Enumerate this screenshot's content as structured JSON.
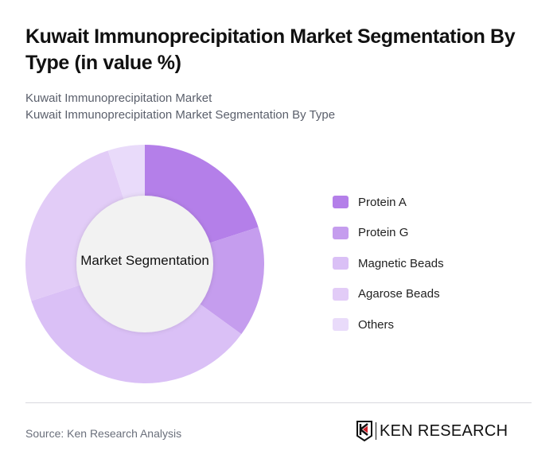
{
  "header": {
    "title": "Kuwait Immunoprecipitation Market Segmentation By Type (in value %)",
    "subtitle_line1": "Kuwait Immunoprecipitation Market",
    "subtitle_line2": "Kuwait Immunoprecipitation Market Segmentation By Type"
  },
  "chart": {
    "center_label": "Market Segmentation"
  },
  "legend": {
    "items": [
      {
        "label": "Protein A",
        "color": "#B47FE9"
      },
      {
        "label": "Protein G",
        "color": "#C59DEE"
      },
      {
        "label": "Magnetic Beads",
        "color": "#DAC0F6"
      },
      {
        "label": "Agarose Beads",
        "color": "#E2CCF7"
      },
      {
        "label": "Others",
        "color": "#E9DBFA"
      }
    ]
  },
  "footer": {
    "source": "Source: Ken Research Analysis",
    "logo_text": "KEN RESEARCH"
  },
  "chart_data": {
    "type": "pie",
    "title": "Kuwait Immunoprecipitation Market Segmentation By Type (in value %)",
    "center_label": "Market Segmentation",
    "donut": true,
    "categories": [
      "Protein A",
      "Protein G",
      "Magnetic Beads",
      "Agarose Beads",
      "Others"
    ],
    "values": [
      20,
      15,
      35,
      25,
      5
    ],
    "colors": [
      "#B47FE9",
      "#C59DEE",
      "#DAC0F6",
      "#E2CCF7",
      "#E9DBFA"
    ],
    "legend_position": "right",
    "unit": "%"
  }
}
